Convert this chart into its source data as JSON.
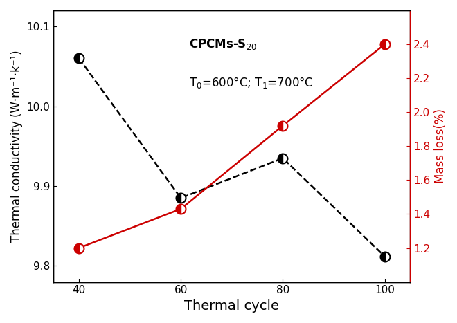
{
  "thermal_cycles": [
    40,
    60,
    80,
    100
  ],
  "thermal_conductivity": [
    10.06,
    9.885,
    9.935,
    9.812
  ],
  "mass_loss": [
    1.2,
    1.43,
    1.92,
    2.4
  ],
  "tc_ylim": [
    9.78,
    10.12
  ],
  "tc_yticks": [
    9.8,
    9.9,
    10.0,
    10.1
  ],
  "ml_ylim": [
    1.0,
    2.6
  ],
  "ml_yticks": [
    1.2,
    1.4,
    1.6,
    1.8,
    2.0,
    2.2,
    2.4
  ],
  "xticks": [
    40,
    60,
    80,
    100
  ],
  "xlabel": "Thermal cycle",
  "ylabel_left": "Thermal conductivity (W·m⁻¹·k⁻¹)",
  "ylabel_right": "Mass loss(%)",
  "line_color_tc": "black",
  "line_color_ml": "#cc0000",
  "background_color": "white",
  "marker_size": 8
}
